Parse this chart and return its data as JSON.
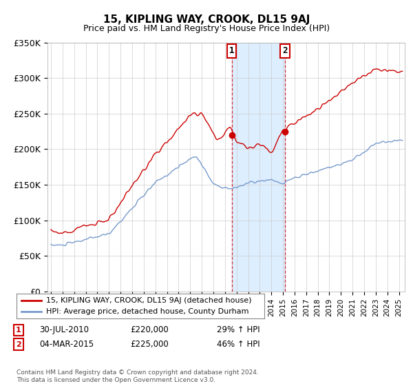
{
  "title": "15, KIPLING WAY, CROOK, DL15 9AJ",
  "subtitle": "Price paid vs. HM Land Registry's House Price Index (HPI)",
  "ylabel_ticks": [
    "£0",
    "£50K",
    "£100K",
    "£150K",
    "£200K",
    "£250K",
    "£300K",
    "£350K"
  ],
  "ytick_values": [
    0,
    50000,
    100000,
    150000,
    200000,
    250000,
    300000,
    350000
  ],
  "ylim": [
    0,
    350000
  ],
  "legend_label_red": "15, KIPLING WAY, CROOK, DL15 9AJ (detached house)",
  "legend_label_blue": "HPI: Average price, detached house, County Durham",
  "red_color": "#cc0000",
  "blue_color": "#7799cc",
  "shade_color": "#ddeeff",
  "sale1_date": "30-JUL-2010",
  "sale1_price": "£220,000",
  "sale1_hpi": "29% ↑ HPI",
  "sale1_x": 2010.58,
  "sale1_y": 220000,
  "sale2_date": "04-MAR-2015",
  "sale2_price": "£225,000",
  "sale2_hpi": "46% ↑ HPI",
  "sale2_x": 2015.17,
  "sale2_y": 225000,
  "footer": "Contains HM Land Registry data © Crown copyright and database right 2024.\nThis data is licensed under the Open Government Licence v3.0.",
  "grid_color": "#cccccc",
  "background_color": "#ffffff",
  "xmin": 1994.7,
  "xmax": 2025.5
}
